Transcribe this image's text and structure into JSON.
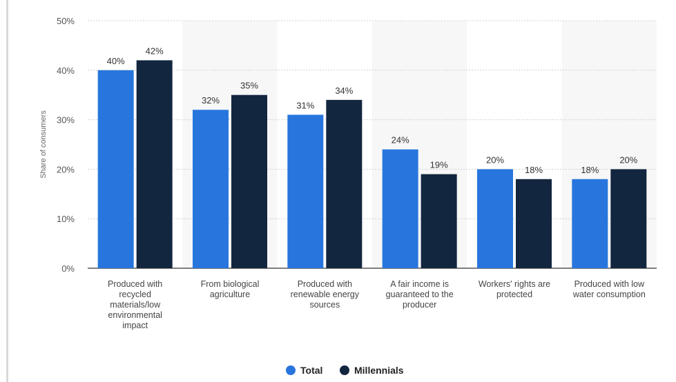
{
  "chart_data": {
    "type": "bar",
    "categories": [
      [
        "Produced with",
        "recycled",
        "materials/low",
        "environmental",
        "impact"
      ],
      [
        "From biological",
        "agriculture"
      ],
      [
        "Produced with",
        "renewable energy",
        "sources"
      ],
      [
        "A fair income is",
        "guaranteed to the",
        "producer"
      ],
      [
        "Workers' rights are",
        "protected"
      ],
      [
        "Produced with low",
        "water consumption"
      ]
    ],
    "series": [
      {
        "name": "Total",
        "color": "#2876dd",
        "values": [
          40,
          32,
          31,
          24,
          20,
          18
        ],
        "labels": [
          "40%",
          "32%",
          "31%",
          "24%",
          "20%",
          "18%"
        ]
      },
      {
        "name": "Millennials",
        "color": "#13263f",
        "values": [
          42,
          35,
          34,
          19,
          18,
          20
        ],
        "labels": [
          "42%",
          "35%",
          "34%",
          "19%",
          "18%",
          "20%"
        ]
      }
    ],
    "ylabel": "Share of consumers",
    "ylim": [
      0,
      50
    ],
    "yticks": [
      0,
      10,
      20,
      30,
      40,
      50
    ],
    "ytick_labels": [
      "0%",
      "10%",
      "20%",
      "30%",
      "40%",
      "50%"
    ],
    "grid": true,
    "legend": "bottom-center"
  }
}
